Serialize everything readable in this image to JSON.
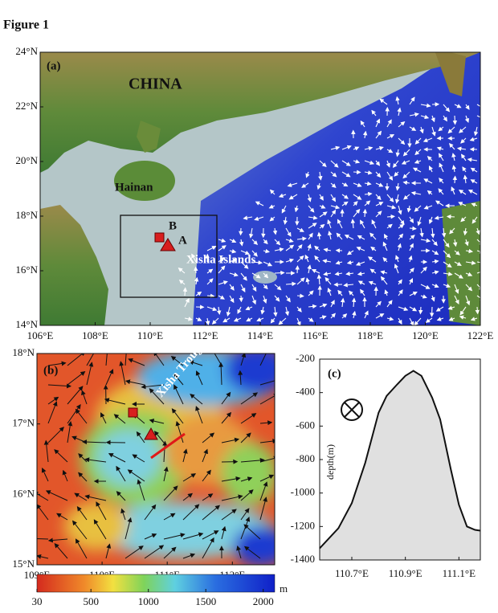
{
  "figure_title": "Figure 1",
  "map_a": {
    "label": "(a)",
    "place_labels": [
      "CHINA",
      "Hainan",
      "B",
      "A",
      "Xisha Islands"
    ],
    "xlim": [
      106,
      122
    ],
    "ylim": [
      14,
      24
    ],
    "xticks": [
      {
        "value": 106,
        "label": "106°E"
      },
      {
        "value": 108,
        "label": "108°E"
      },
      {
        "value": 110,
        "label": "110°E"
      },
      {
        "value": 112,
        "label": "112°E"
      },
      {
        "value": 114,
        "label": "114°E"
      },
      {
        "value": 116,
        "label": "116°E"
      },
      {
        "value": 118,
        "label": "118°E"
      },
      {
        "value": 120,
        "label": "120°E"
      },
      {
        "value": 122,
        "label": "122°E"
      }
    ],
    "yticks": [
      {
        "value": 14,
        "label": "14°N"
      },
      {
        "value": 16,
        "label": "16°N"
      },
      {
        "value": 18,
        "label": "18°N"
      },
      {
        "value": 20,
        "label": "20°N"
      },
      {
        "value": 22,
        "label": "22°N"
      },
      {
        "value": 24,
        "label": "24°N"
      }
    ]
  },
  "map_b": {
    "label": "(b)",
    "place_labels": [
      "Xisha Trough"
    ],
    "xlim": [
      109,
      112.65
    ],
    "ylim": [
      15,
      18
    ],
    "xticks": [
      {
        "value": 109,
        "label": "109°E"
      },
      {
        "value": 110,
        "label": "110°E"
      },
      {
        "value": 111,
        "label": "111°E"
      },
      {
        "value": 112,
        "label": "112°E"
      }
    ],
    "yticks": [
      {
        "value": 15,
        "label": "15°N"
      },
      {
        "value": 16,
        "label": "16°N"
      },
      {
        "value": 17,
        "label": "17°N"
      },
      {
        "value": 18,
        "label": "18°N"
      }
    ]
  },
  "colorbar": {
    "unit": "m",
    "lim": [
      30,
      2100
    ],
    "ticks": [
      30,
      500,
      1000,
      1500,
      2000
    ]
  },
  "chart_data": {
    "type": "area",
    "label": "(c)",
    "y_label": "depth(m)",
    "x": [
      110.58,
      110.65,
      110.7,
      110.75,
      110.8,
      110.83,
      110.87,
      110.9,
      110.93,
      110.96,
      111.0,
      111.03,
      111.07,
      111.1,
      111.13,
      111.16,
      111.18
    ],
    "values": [
      -1330,
      -1210,
      -1060,
      -820,
      -520,
      -420,
      -350,
      -300,
      -270,
      -300,
      -430,
      -560,
      -860,
      -1070,
      -1200,
      -1220,
      -1225
    ],
    "color": "#e0e0e0",
    "xlim": [
      110.58,
      111.18
    ],
    "xticks": [
      {
        "value": 110.7,
        "label": "110.7°E"
      },
      {
        "value": 110.9,
        "label": "110.9°E"
      },
      {
        "value": 111.1,
        "label": "111.1°E"
      }
    ],
    "ylim": [
      -1400,
      -200
    ],
    "yticks": [
      -1400,
      -1200,
      -1000,
      -800,
      -600,
      -400,
      -200
    ]
  }
}
